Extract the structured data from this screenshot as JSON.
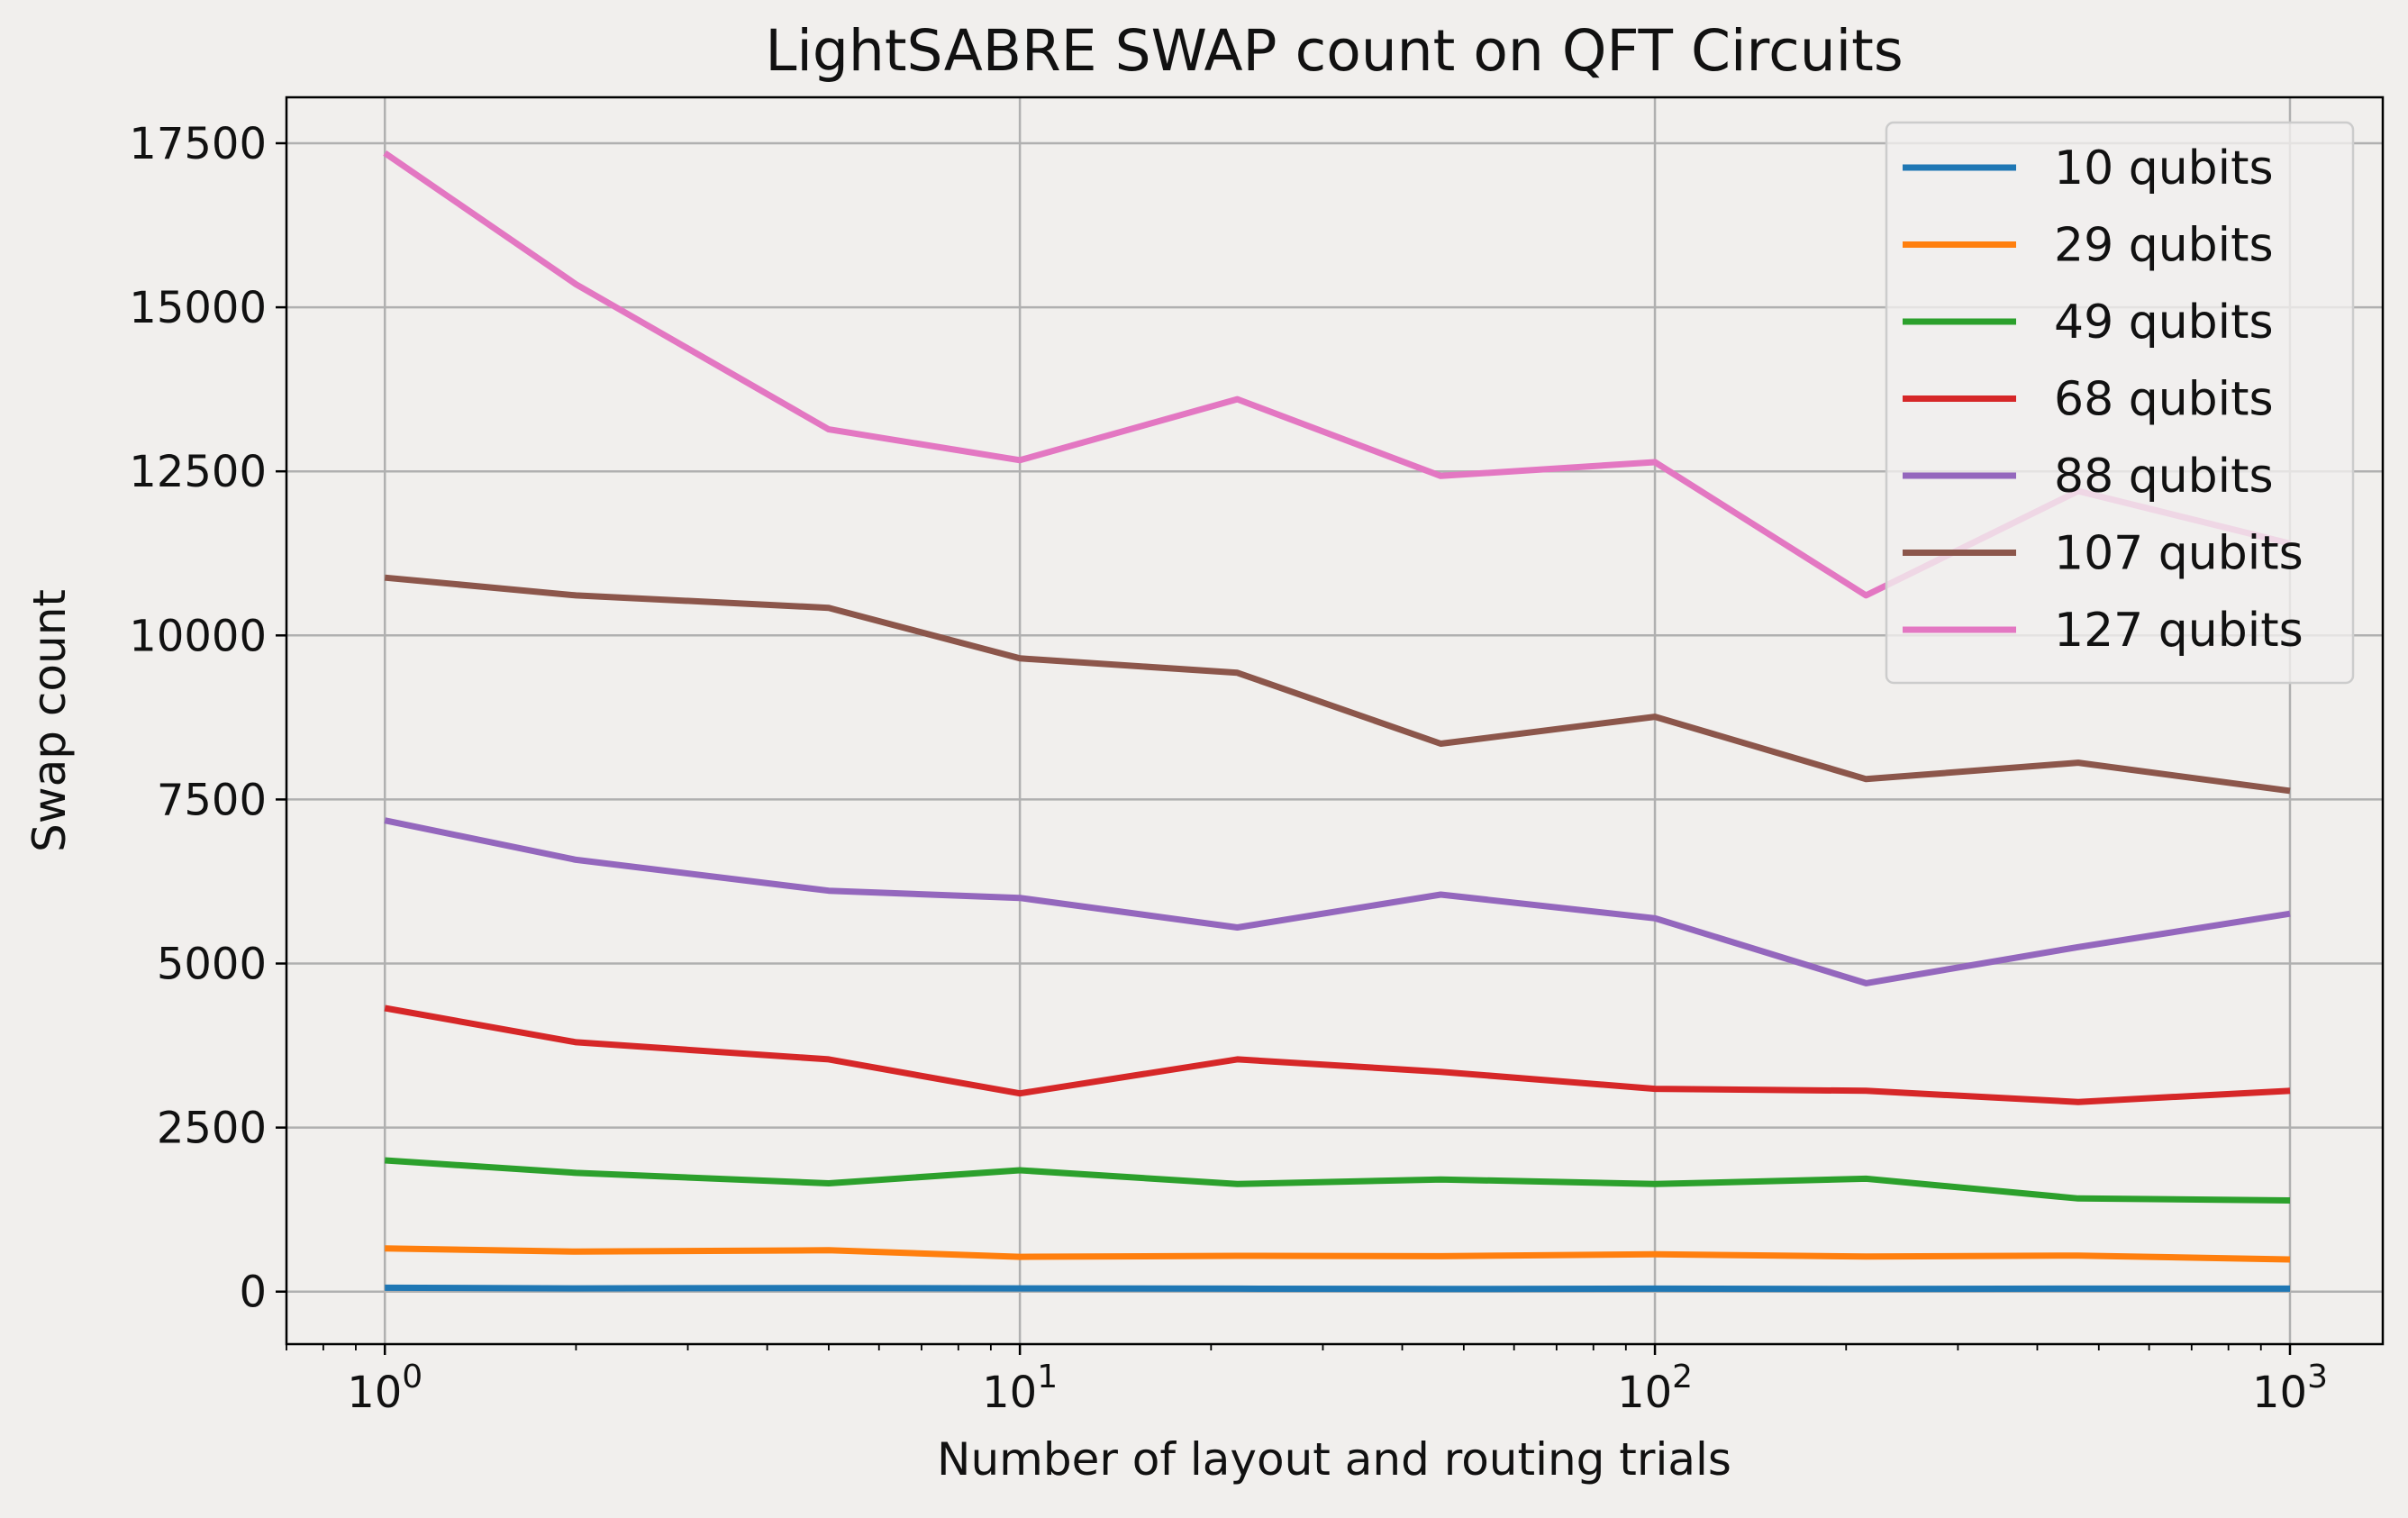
{
  "chart_data": {
    "type": "line",
    "title": "LightSABRE SWAP count on QFT Circuits",
    "xlabel": "Number of layout and routing trials",
    "ylabel": "Swap count",
    "x_scale": "log",
    "xlim": [
      0.7,
      1400
    ],
    "ylim": [
      -800,
      18200
    ],
    "x_ticks": [
      {
        "value": 1,
        "base": "10",
        "exp": "0"
      },
      {
        "value": 10,
        "base": "10",
        "exp": "1"
      },
      {
        "value": 100,
        "base": "10",
        "exp": "2"
      },
      {
        "value": 1000,
        "base": "10",
        "exp": "3"
      }
    ],
    "y_ticks": [
      {
        "value": 0,
        "label": "0"
      },
      {
        "value": 2500,
        "label": "2500"
      },
      {
        "value": 5000,
        "label": "5000"
      },
      {
        "value": 7500,
        "label": "7500"
      },
      {
        "value": 10000,
        "label": "10000"
      },
      {
        "value": 12500,
        "label": "12500"
      },
      {
        "value": 15000,
        "label": "15000"
      },
      {
        "value": 17500,
        "label": "17500"
      }
    ],
    "grid": true,
    "legend_position": "upper right",
    "x": [
      1,
      2,
      5,
      10,
      22,
      46,
      100,
      215,
      464,
      1000
    ],
    "series": [
      {
        "name": "10 qubits",
        "color": "#1f77b4",
        "values": [
          60,
          50,
          55,
          50,
          45,
          40,
          45,
          40,
          45,
          45
        ]
      },
      {
        "name": "29 qubits",
        "color": "#ff7f0e",
        "values": [
          660,
          610,
          630,
          530,
          545,
          540,
          570,
          535,
          550,
          490
        ]
      },
      {
        "name": "49 qubits",
        "color": "#2ca02c",
        "values": [
          2000,
          1810,
          1650,
          1850,
          1640,
          1710,
          1640,
          1720,
          1420,
          1390
        ]
      },
      {
        "name": "68 qubits",
        "color": "#d62728",
        "values": [
          4320,
          3800,
          3540,
          3020,
          3540,
          3350,
          3090,
          3060,
          2890,
          3060
        ]
      },
      {
        "name": "88 qubits",
        "color": "#9467bd",
        "values": [
          7180,
          6580,
          6110,
          6000,
          5550,
          6050,
          5690,
          4700,
          5250,
          5760
        ]
      },
      {
        "name": "107 qubits",
        "color": "#8c564b",
        "values": [
          10880,
          10610,
          10420,
          9650,
          9430,
          8350,
          8760,
          7810,
          8060,
          7630
        ]
      },
      {
        "name": "127 qubits",
        "color": "#e377c2",
        "values": [
          17350,
          15350,
          13140,
          12670,
          13600,
          12430,
          12640,
          10610,
          12200,
          11400
        ]
      }
    ]
  }
}
